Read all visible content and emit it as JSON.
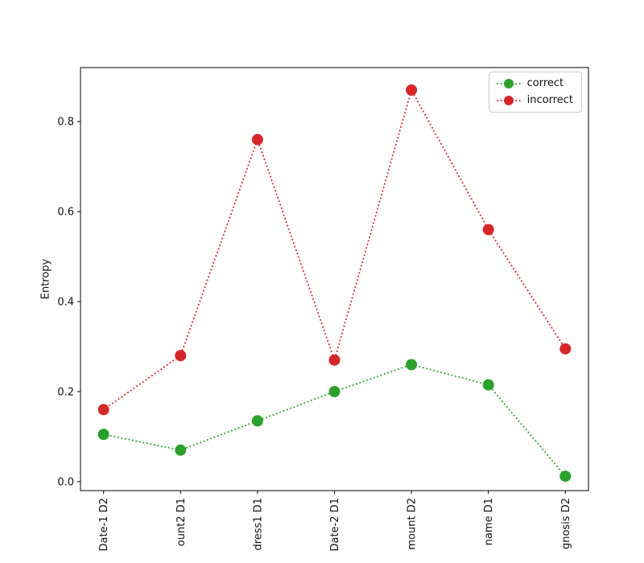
{
  "figure": {
    "background": "#ffffff"
  },
  "legend": {
    "position": "upper right",
    "items": [
      {
        "label": "correct",
        "color": "#2ca02c"
      },
      {
        "label": "incorrect",
        "color": "#d62728"
      }
    ]
  },
  "chart_data": {
    "type": "line",
    "title": "",
    "xlabel": "",
    "ylabel": "Entropy",
    "categories": [
      "Date-1 D2",
      "ount2 D1",
      "dress1 D1",
      "Date-2 D1",
      "mount D2",
      "name D1",
      "gnosis D2"
    ],
    "series": [
      {
        "name": "correct",
        "color": "#2ca02c",
        "values": [
          0.105,
          0.07,
          0.135,
          0.2,
          0.26,
          0.215,
          0.012
        ]
      },
      {
        "name": "incorrect",
        "color": "#d62728",
        "values": [
          0.16,
          0.28,
          0.76,
          0.27,
          0.87,
          0.56,
          0.295
        ]
      }
    ],
    "yticks": [
      0.0,
      0.2,
      0.4,
      0.6,
      0.8
    ],
    "ylim": [
      -0.02,
      0.92
    ],
    "grid": false,
    "line_style": "dotted",
    "marker": "circle",
    "x_tick_rotation": 90,
    "legend_position": "upper right"
  }
}
